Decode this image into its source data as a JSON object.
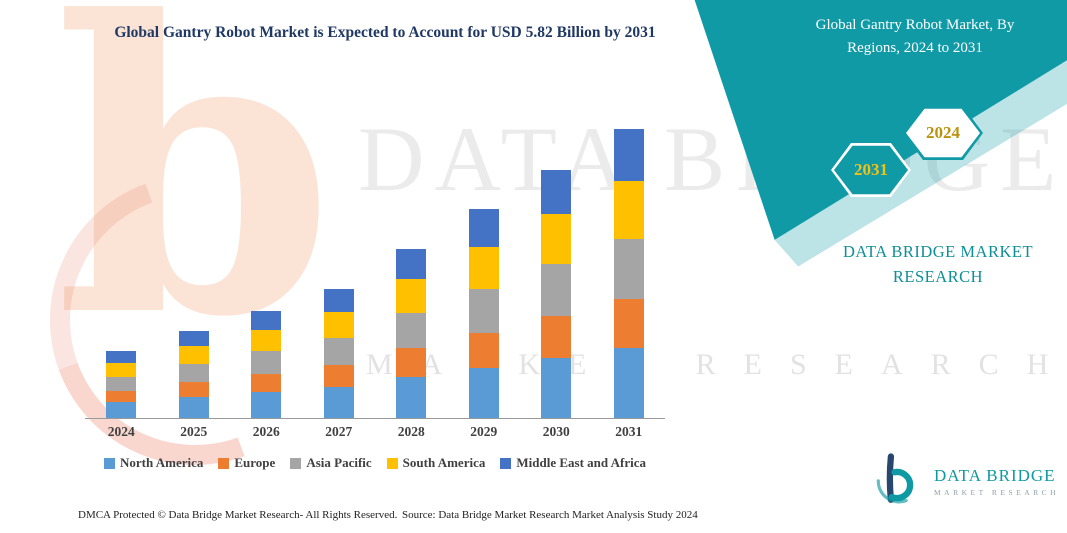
{
  "watermark": {
    "big_letter": "b",
    "line1": "DATA BRIDGE",
    "line2": "MARKET RESEARCH"
  },
  "banner": {
    "title": "Global Gantry Robot Market, By Regions, 2024 to 2031",
    "hex_left": "2031",
    "hex_right": "2024",
    "brand_text": "DATA BRIDGE MARKET RESEARCH",
    "teal_color": "#0f9aa6",
    "hex_year_color": "#f2c118"
  },
  "chart_data": {
    "type": "bar",
    "stacked": true,
    "title": "Global Gantry Robot Market is Expected to Account for USD 5.82 Billion by 2031",
    "xlabel": "",
    "ylabel": "",
    "units": "USD Billion",
    "ylim": [
      0,
      6.1
    ],
    "grid": false,
    "legend_position": "bottom",
    "categories": [
      "2024",
      "2025",
      "2026",
      "2027",
      "2028",
      "2029",
      "2030",
      "2031"
    ],
    "series": [
      {
        "name": "North America",
        "color": "#5B9BD5",
        "values": [
          0.32,
          0.42,
          0.52,
          0.62,
          0.82,
          1.01,
          1.2,
          1.4
        ]
      },
      {
        "name": "Europe",
        "color": "#ED7D31",
        "values": [
          0.23,
          0.3,
          0.37,
          0.44,
          0.58,
          0.71,
          0.85,
          0.99
        ]
      },
      {
        "name": "Asia Pacific",
        "color": "#A5A5A5",
        "values": [
          0.28,
          0.37,
          0.45,
          0.55,
          0.71,
          0.88,
          1.05,
          1.22
        ]
      },
      {
        "name": "South America",
        "color": "#FFC000",
        "values": [
          0.27,
          0.35,
          0.43,
          0.52,
          0.68,
          0.84,
          1.0,
          1.16
        ]
      },
      {
        "name": "Middle East and Africa",
        "color": "#4472C4",
        "values": [
          0.25,
          0.31,
          0.38,
          0.47,
          0.61,
          0.76,
          0.9,
          1.05
        ]
      }
    ],
    "totals": [
      1.35,
      1.75,
      2.15,
      2.6,
      3.4,
      4.2,
      5.0,
      5.82
    ]
  },
  "footer": {
    "left": "DMCA Protected © Data Bridge Market Research-  All Rights Reserved.",
    "source": "Source: Data Bridge Market Research  Market Analysis Study 2024"
  },
  "logo": {
    "name": "DATA BRIDGE",
    "sub": "MARKET RESEARCH"
  }
}
